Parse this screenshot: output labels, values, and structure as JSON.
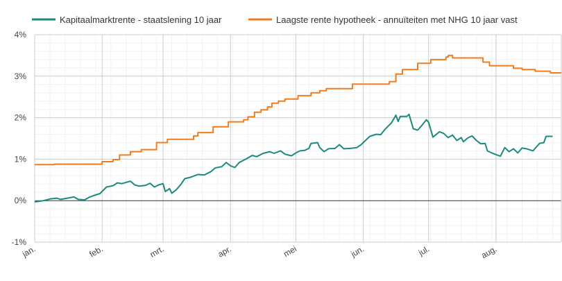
{
  "chart_data": {
    "type": "line",
    "title": "",
    "xlabel": "",
    "ylabel": "",
    "ylim": [
      -1,
      4
    ],
    "xlim": [
      "2022-01-01",
      "2022-08-31"
    ],
    "y_ticks": [
      {
        "value": -1,
        "label": "-1%"
      },
      {
        "value": 0,
        "label": "0%"
      },
      {
        "value": 1,
        "label": "1%"
      },
      {
        "value": 2,
        "label": "2%"
      },
      {
        "value": 3,
        "label": "3%"
      },
      {
        "value": 4,
        "label": "4%"
      }
    ],
    "x_ticks": [
      {
        "date": "2022-01-01",
        "label": "jan."
      },
      {
        "date": "2022-02-01",
        "label": "feb."
      },
      {
        "date": "2022-03-01",
        "label": "mrt."
      },
      {
        "date": "2022-04-01",
        "label": "apr."
      },
      {
        "date": "2022-05-01",
        "label": "mei"
      },
      {
        "date": "2022-06-01",
        "label": "jun."
      },
      {
        "date": "2022-07-01",
        "label": "jul."
      },
      {
        "date": "2022-08-01",
        "label": "aug."
      }
    ],
    "grid": true,
    "legend_position": "top",
    "series": [
      {
        "name": "Kapitaalmarktrente - staatslening 10 jaar",
        "color": "#1a8a7e",
        "step": false,
        "points": [
          [
            "2022-01-01",
            -0.03
          ],
          [
            "2022-01-05",
            0.0
          ],
          [
            "2022-01-08",
            0.04
          ],
          [
            "2022-01-11",
            0.06
          ],
          [
            "2022-01-13",
            0.03
          ],
          [
            "2022-01-16",
            0.06
          ],
          [
            "2022-01-19",
            0.09
          ],
          [
            "2022-01-21",
            0.03
          ],
          [
            "2022-01-24",
            0.02
          ],
          [
            "2022-01-26",
            0.08
          ],
          [
            "2022-01-28",
            0.12
          ],
          [
            "2022-01-31",
            0.17
          ],
          [
            "2022-02-03",
            0.33
          ],
          [
            "2022-02-06",
            0.36
          ],
          [
            "2022-02-08",
            0.43
          ],
          [
            "2022-02-10",
            0.41
          ],
          [
            "2022-02-14",
            0.47
          ],
          [
            "2022-02-16",
            0.38
          ],
          [
            "2022-02-18",
            0.35
          ],
          [
            "2022-02-21",
            0.37
          ],
          [
            "2022-02-23",
            0.42
          ],
          [
            "2022-02-25",
            0.33
          ],
          [
            "2022-02-27",
            0.38
          ],
          [
            "2022-03-01",
            0.41
          ],
          [
            "2022-03-02",
            0.22
          ],
          [
            "2022-03-04",
            0.29
          ],
          [
            "2022-03-05",
            0.18
          ],
          [
            "2022-03-07",
            0.26
          ],
          [
            "2022-03-09",
            0.38
          ],
          [
            "2022-03-11",
            0.53
          ],
          [
            "2022-03-14",
            0.57
          ],
          [
            "2022-03-17",
            0.63
          ],
          [
            "2022-03-20",
            0.62
          ],
          [
            "2022-03-23",
            0.7
          ],
          [
            "2022-03-25",
            0.79
          ],
          [
            "2022-03-28",
            0.82
          ],
          [
            "2022-03-30",
            0.92
          ],
          [
            "2022-04-01",
            0.84
          ],
          [
            "2022-04-03",
            0.8
          ],
          [
            "2022-04-05",
            0.92
          ],
          [
            "2022-04-08",
            1.0
          ],
          [
            "2022-04-11",
            1.09
          ],
          [
            "2022-04-13",
            1.06
          ],
          [
            "2022-04-16",
            1.14
          ],
          [
            "2022-04-19",
            1.18
          ],
          [
            "2022-04-21",
            1.14
          ],
          [
            "2022-04-24",
            1.2
          ],
          [
            "2022-04-26",
            1.12
          ],
          [
            "2022-04-29",
            1.08
          ],
          [
            "2022-05-01",
            1.15
          ],
          [
            "2022-05-03",
            1.2
          ],
          [
            "2022-05-05",
            1.21
          ],
          [
            "2022-05-07",
            1.26
          ],
          [
            "2022-05-08",
            1.38
          ],
          [
            "2022-05-11",
            1.4
          ],
          [
            "2022-05-12",
            1.28
          ],
          [
            "2022-05-14",
            1.18
          ],
          [
            "2022-05-16",
            1.25
          ],
          [
            "2022-05-19",
            1.26
          ],
          [
            "2022-05-21",
            1.35
          ],
          [
            "2022-05-23",
            1.25
          ],
          [
            "2022-05-26",
            1.26
          ],
          [
            "2022-05-29",
            1.28
          ],
          [
            "2022-05-31",
            1.35
          ],
          [
            "2022-06-02",
            1.45
          ],
          [
            "2022-06-04",
            1.55
          ],
          [
            "2022-06-07",
            1.6
          ],
          [
            "2022-06-09",
            1.59
          ],
          [
            "2022-06-11",
            1.72
          ],
          [
            "2022-06-14",
            1.88
          ],
          [
            "2022-06-16",
            2.06
          ],
          [
            "2022-06-17",
            1.91
          ],
          [
            "2022-06-18",
            2.03
          ],
          [
            "2022-06-21",
            2.03
          ],
          [
            "2022-06-22",
            2.08
          ],
          [
            "2022-06-24",
            1.73
          ],
          [
            "2022-06-26",
            1.7
          ],
          [
            "2022-06-28",
            1.82
          ],
          [
            "2022-06-30",
            1.95
          ],
          [
            "2022-07-01",
            1.89
          ],
          [
            "2022-07-03",
            1.53
          ],
          [
            "2022-07-06",
            1.66
          ],
          [
            "2022-07-08",
            1.62
          ],
          [
            "2022-07-10",
            1.52
          ],
          [
            "2022-07-12",
            1.58
          ],
          [
            "2022-07-14",
            1.45
          ],
          [
            "2022-07-16",
            1.52
          ],
          [
            "2022-07-17",
            1.42
          ],
          [
            "2022-07-19",
            1.51
          ],
          [
            "2022-07-21",
            1.56
          ],
          [
            "2022-07-23",
            1.45
          ],
          [
            "2022-07-25",
            1.37
          ],
          [
            "2022-07-27",
            1.38
          ],
          [
            "2022-07-28",
            1.2
          ],
          [
            "2022-07-30",
            1.15
          ],
          [
            "2022-08-03",
            1.07
          ],
          [
            "2022-08-05",
            1.28
          ],
          [
            "2022-08-07",
            1.18
          ],
          [
            "2022-08-09",
            1.25
          ],
          [
            "2022-08-11",
            1.15
          ],
          [
            "2022-08-13",
            1.27
          ],
          [
            "2022-08-15",
            1.25
          ],
          [
            "2022-08-18",
            1.2
          ],
          [
            "2022-08-21",
            1.38
          ],
          [
            "2022-08-23",
            1.4
          ],
          [
            "2022-08-24",
            1.55
          ],
          [
            "2022-08-27",
            1.55
          ]
        ]
      },
      {
        "name": "Laagste rente hypotheek - annuïteiten met NHG 10 jaar vast",
        "color": "#f07c1b",
        "step": true,
        "points": [
          [
            "2022-01-01",
            0.87
          ],
          [
            "2022-01-10",
            0.88
          ],
          [
            "2022-02-01",
            0.94
          ],
          [
            "2022-02-06",
            0.99
          ],
          [
            "2022-02-09",
            1.1
          ],
          [
            "2022-02-14",
            1.18
          ],
          [
            "2022-02-19",
            1.23
          ],
          [
            "2022-02-26",
            1.4
          ],
          [
            "2022-03-03",
            1.48
          ],
          [
            "2022-03-15",
            1.56
          ],
          [
            "2022-03-17",
            1.64
          ],
          [
            "2022-03-24",
            1.78
          ],
          [
            "2022-03-31",
            1.9
          ],
          [
            "2022-04-07",
            1.95
          ],
          [
            "2022-04-09",
            2.02
          ],
          [
            "2022-04-12",
            2.13
          ],
          [
            "2022-04-15",
            2.19
          ],
          [
            "2022-04-18",
            2.26
          ],
          [
            "2022-04-20",
            2.35
          ],
          [
            "2022-04-23",
            2.4
          ],
          [
            "2022-04-26",
            2.45
          ],
          [
            "2022-05-02",
            2.53
          ],
          [
            "2022-05-08",
            2.6
          ],
          [
            "2022-05-12",
            2.65
          ],
          [
            "2022-05-15",
            2.7
          ],
          [
            "2022-05-27",
            2.81
          ],
          [
            "2022-06-13",
            2.87
          ],
          [
            "2022-06-16",
            3.05
          ],
          [
            "2022-06-19",
            3.16
          ],
          [
            "2022-06-26",
            3.31
          ],
          [
            "2022-07-02",
            3.4
          ],
          [
            "2022-07-09",
            3.46
          ],
          [
            "2022-07-10",
            3.5
          ],
          [
            "2022-07-12",
            3.44
          ],
          [
            "2022-07-26",
            3.34
          ],
          [
            "2022-07-29",
            3.25
          ],
          [
            "2022-08-09",
            3.19
          ],
          [
            "2022-08-13",
            3.16
          ],
          [
            "2022-08-19",
            3.12
          ],
          [
            "2022-08-26",
            3.08
          ]
        ]
      }
    ]
  }
}
